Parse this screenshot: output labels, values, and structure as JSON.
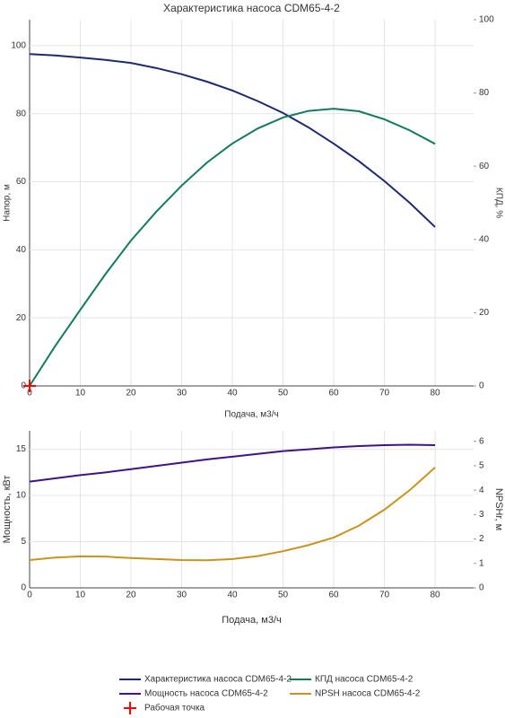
{
  "chart_data": [
    {
      "type": "line",
      "title": "Характеристика насоса CDM65-4-2",
      "x_label": "Подача, м3/ч",
      "y_label": "Напор, м",
      "y2_label": "КПД, %",
      "x": [
        0,
        5,
        10,
        15,
        20,
        25,
        30,
        35,
        40,
        45,
        50,
        55,
        60,
        65,
        70,
        75,
        80
      ],
      "xlim": [
        0,
        87.6
      ],
      "xticks": [
        0,
        10,
        20,
        30,
        40,
        50,
        60,
        70,
        80
      ],
      "ylim": [
        0,
        107.6
      ],
      "yticks": [
        0,
        20,
        40,
        60,
        80,
        100
      ],
      "y2lim": [
        0,
        100
      ],
      "y2ticks": [
        0,
        20,
        40,
        60,
        80,
        100
      ],
      "grid": true,
      "series": [
        {
          "name": "Характеристика насоса CDM65-4-2",
          "color": "#1e2a6e",
          "values": [
            97.5,
            97.1,
            96.5,
            95.8,
            94.9,
            93.4,
            91.6,
            89.4,
            86.8,
            83.7,
            80.2,
            76.0,
            71.2,
            66.0,
            60.2,
            53.8,
            46.7
          ]
        },
        {
          "name": "КПД насоса CDM65-4-2",
          "color": "#137a5c",
          "axis": "y2",
          "values": [
            0,
            10.8,
            20.8,
            30.6,
            39.7,
            47.6,
            54.7,
            61.0,
            66.2,
            70.3,
            73.3,
            75.1,
            75.7,
            75.0,
            72.8,
            69.8,
            66.1
          ]
        },
        {
          "name": "Рабочая точка",
          "color": "#ff0000",
          "mode": "markers",
          "x": [
            0
          ],
          "values": [
            0
          ]
        }
      ]
    },
    {
      "type": "line",
      "x_label": "Подача, м3/ч",
      "y_label": "Мощность, кВт",
      "y2_label": "NPSHr, м",
      "x": [
        0,
        5,
        10,
        15,
        20,
        25,
        30,
        35,
        40,
        45,
        50,
        55,
        60,
        65,
        70,
        75,
        80
      ],
      "xlim": [
        0,
        87.6
      ],
      "xticks": [
        0,
        10,
        20,
        30,
        40,
        50,
        60,
        70,
        80
      ],
      "ylim": [
        0,
        17
      ],
      "yticks": [
        0,
        5,
        10,
        15
      ],
      "y2lim": [
        0,
        6.43
      ],
      "y2ticks": [
        0,
        1,
        2,
        3,
        4,
        5,
        6
      ],
      "grid": true,
      "series": [
        {
          "name": "Мощность насоса CDM65-4-2",
          "color": "#3f128a",
          "values": [
            11.5,
            11.85,
            12.2,
            12.5,
            12.85,
            13.2,
            13.55,
            13.9,
            14.2,
            14.5,
            14.8,
            15.0,
            15.2,
            15.35,
            15.45,
            15.5,
            15.45
          ]
        },
        {
          "name": "NPSH насоса CDM65-4-2",
          "color": "#c8941e",
          "axis": "y2",
          "values": [
            1.14,
            1.24,
            1.29,
            1.28,
            1.22,
            1.18,
            1.14,
            1.13,
            1.18,
            1.3,
            1.5,
            1.75,
            2.06,
            2.55,
            3.2,
            4.0,
            4.93
          ]
        }
      ]
    }
  ]
}
